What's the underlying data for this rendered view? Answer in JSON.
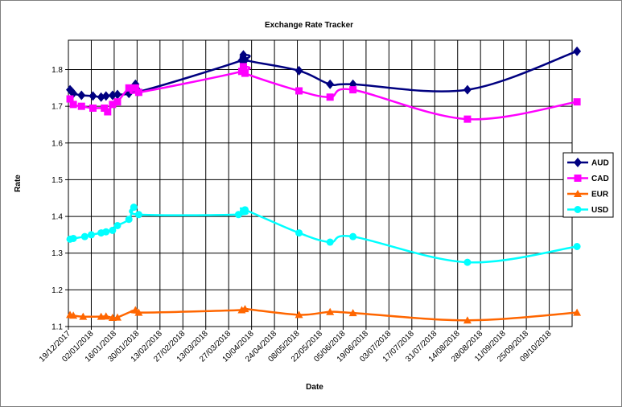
{
  "chart_data": {
    "type": "line",
    "title": "Exchange Rate Tracker",
    "xlabel": "Date",
    "ylabel": "Rate",
    "ylim": [
      1.1,
      1.88
    ],
    "yticks": [
      1.1,
      1.2,
      1.3,
      1.4,
      1.5,
      1.6,
      1.7,
      1.8
    ],
    "xlim": [
      "2017-12-19",
      "2018-10-23"
    ],
    "xtick_labels": [
      "19/12/2017",
      "02/01/2018",
      "16/01/2018",
      "30/01/2018",
      "13/02/2018",
      "27/02/2018",
      "13/03/2018",
      "27/03/2018",
      "10/04/2018",
      "24/04/2018",
      "08/05/2018",
      "22/05/2018",
      "05/06/2018",
      "19/06/2018",
      "03/07/2018",
      "17/07/2018",
      "31/07/2018",
      "14/08/2018",
      "28/08/2018",
      "11/09/2018",
      "25/09/2018",
      "09/10/2018"
    ],
    "xtick_dates": [
      "2017-12-19",
      "2018-01-02",
      "2018-01-16",
      "2018-01-30",
      "2018-02-13",
      "2018-02-27",
      "2018-03-13",
      "2018-03-27",
      "2018-04-10",
      "2018-04-24",
      "2018-05-08",
      "2018-05-22",
      "2018-06-05",
      "2018-06-19",
      "2018-07-03",
      "2018-07-17",
      "2018-07-31",
      "2018-08-14",
      "2018-08-28",
      "2018-09-11",
      "2018-09-25",
      "2018-10-09"
    ],
    "grid": true,
    "legend_position": "right",
    "series": [
      {
        "name": "AUD",
        "color": "#000080",
        "marker": "diamond",
        "x": [
          "2017-12-20",
          "2017-12-21",
          "2017-12-22",
          "2017-12-27",
          "2018-01-03",
          "2018-01-08",
          "2018-01-11",
          "2018-01-15",
          "2018-01-18",
          "2018-01-25",
          "2018-01-29",
          "2018-01-31",
          "2018-04-04",
          "2018-04-05",
          "2018-04-06",
          "2018-05-09",
          "2018-05-28",
          "2018-06-11",
          "2018-08-20",
          "2018-10-26"
        ],
        "y": [
          1.745,
          1.74,
          1.735,
          1.73,
          1.728,
          1.725,
          1.728,
          1.73,
          1.732,
          1.735,
          1.76,
          1.74,
          1.825,
          1.84,
          1.826,
          1.797,
          1.76,
          1.76,
          1.745,
          1.85
        ]
      },
      {
        "name": "CAD",
        "color": "#ff00ff",
        "marker": "square",
        "x": [
          "2017-12-20",
          "2017-12-22",
          "2017-12-27",
          "2018-01-03",
          "2018-01-10",
          "2018-01-12",
          "2018-01-15",
          "2018-01-18",
          "2018-01-25",
          "2018-01-29",
          "2018-01-31",
          "2018-04-04",
          "2018-04-05",
          "2018-04-06",
          "2018-05-09",
          "2018-05-28",
          "2018-06-11",
          "2018-08-20",
          "2018-10-26"
        ],
        "y": [
          1.72,
          1.705,
          1.7,
          1.695,
          1.695,
          1.685,
          1.705,
          1.712,
          1.75,
          1.75,
          1.738,
          1.795,
          1.808,
          1.79,
          1.742,
          1.725,
          1.745,
          1.665,
          1.712
        ]
      },
      {
        "name": "EUR",
        "color": "#ff6600",
        "marker": "triangle",
        "x": [
          "2017-12-20",
          "2017-12-22",
          "2017-12-28",
          "2018-01-08",
          "2018-01-11",
          "2018-01-15",
          "2018-01-18",
          "2018-01-29",
          "2018-01-31",
          "2018-04-04",
          "2018-04-06",
          "2018-05-09",
          "2018-05-28",
          "2018-06-11",
          "2018-08-20",
          "2018-10-26"
        ],
        "y": [
          1.132,
          1.13,
          1.127,
          1.127,
          1.128,
          1.124,
          1.125,
          1.145,
          1.138,
          1.145,
          1.148,
          1.132,
          1.14,
          1.137,
          1.117,
          1.138
        ]
      },
      {
        "name": "USD",
        "color": "#00ffff",
        "marker": "circle",
        "x": [
          "2017-12-20",
          "2017-12-22",
          "2017-12-29",
          "2018-01-02",
          "2018-01-08",
          "2018-01-11",
          "2018-01-15",
          "2018-01-18",
          "2018-01-25",
          "2018-01-28",
          "2018-01-31",
          "2018-04-02",
          "2018-04-05",
          "2018-04-06",
          "2018-05-09",
          "2018-05-28",
          "2018-06-11",
          "2018-08-20",
          "2018-10-26"
        ],
        "y": [
          1.338,
          1.34,
          1.345,
          1.35,
          1.355,
          1.358,
          1.362,
          1.375,
          1.392,
          1.425,
          1.405,
          1.405,
          1.415,
          1.418,
          1.355,
          1.33,
          1.345,
          1.275,
          1.318
        ]
      }
    ]
  }
}
